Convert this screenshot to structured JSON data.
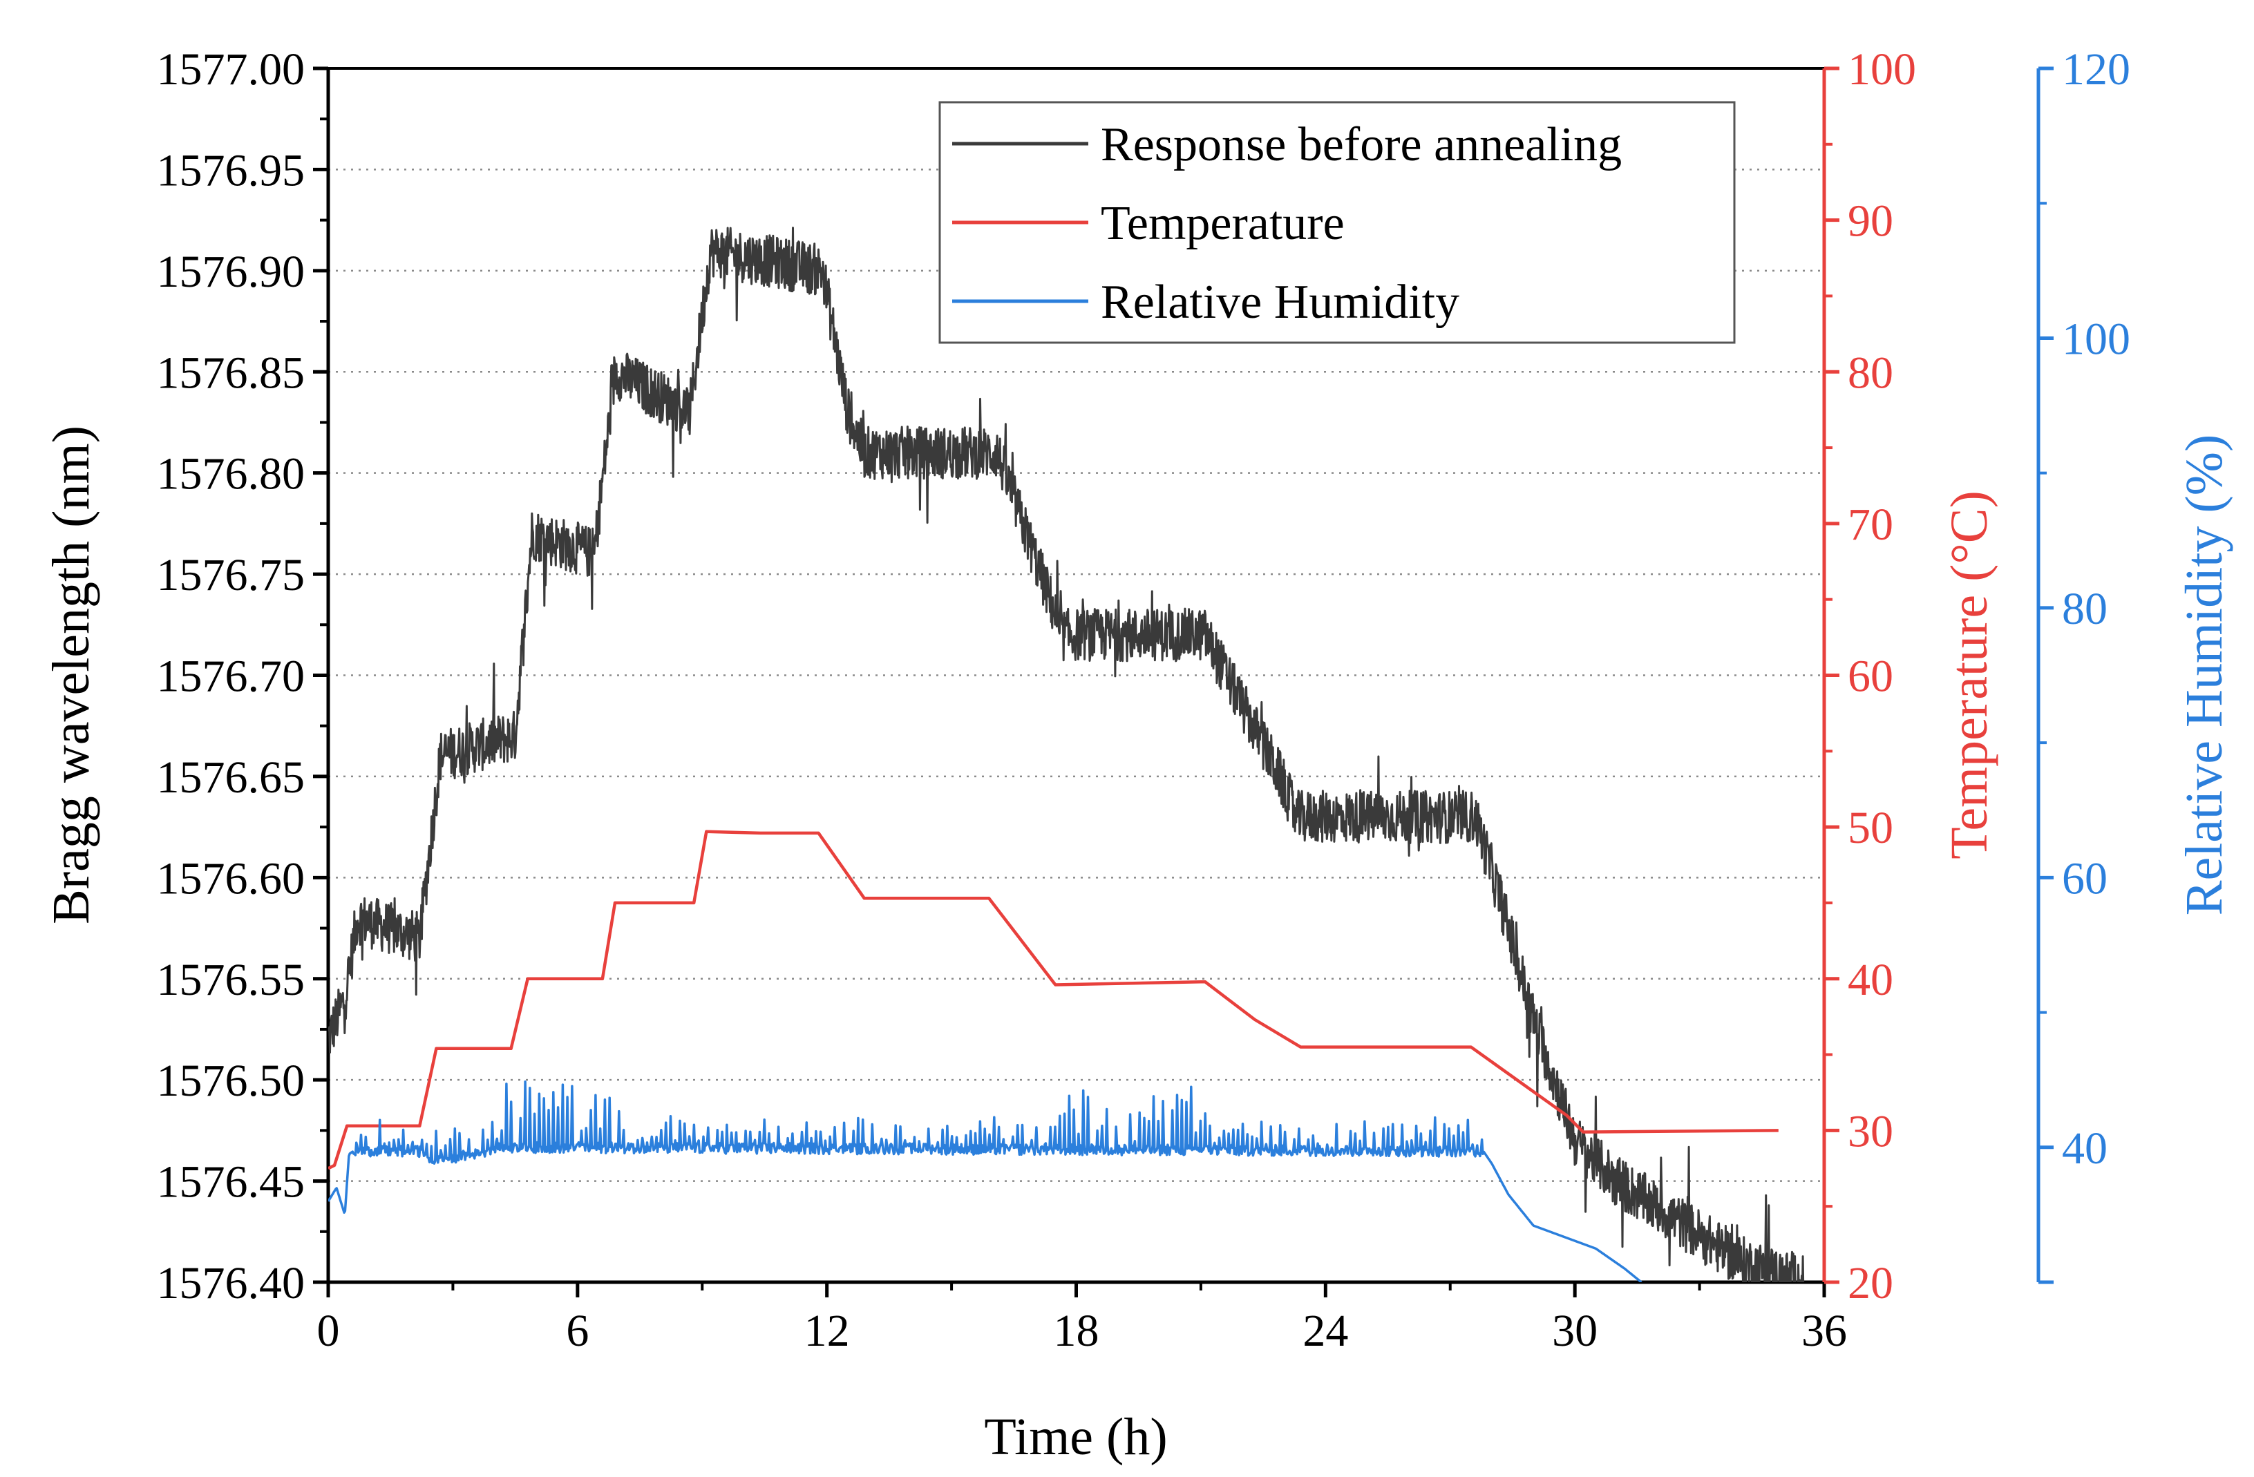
{
  "chart_data": {
    "type": "line",
    "title": "",
    "xlabel": "Time (h)",
    "xlim": [
      0,
      36
    ],
    "xticks": [
      0,
      6,
      12,
      18,
      24,
      30,
      36
    ],
    "grid": "horizontal dotted",
    "legend_position": "top-right",
    "axes": {
      "left": {
        "label": "Bragg wavelength (nm)",
        "range": [
          1576.4,
          1577.0
        ],
        "ticks": [
          "1577.00",
          "1576.95",
          "1576.90",
          "1576.85",
          "1576.80",
          "1576.75",
          "1576.70",
          "1576.65",
          "1576.60",
          "1576.55",
          "1576.50",
          "1576.45",
          "1576.40"
        ],
        "color": "#000000"
      },
      "right1": {
        "label": "Temperature (°C)",
        "range": [
          20,
          100
        ],
        "ticks": [
          "100",
          "90",
          "80",
          "70",
          "60",
          "50",
          "40",
          "30",
          "20"
        ],
        "color": "#e8403c"
      },
      "right2": {
        "label": "Relative Humidity (%)",
        "range": [
          30,
          120
        ],
        "ticks": [
          "120",
          "100",
          "80",
          "60",
          "40"
        ],
        "color": "#2b7fdc"
      }
    },
    "series": [
      {
        "name": "Response before annealing",
        "axis": "left",
        "color": "#3a3a3a",
        "noisy": true,
        "points": [
          [
            0,
            1576.52
          ],
          [
            0.4,
            1576.54
          ],
          [
            0.7,
            1576.58
          ],
          [
            2.2,
            1576.57
          ],
          [
            2.7,
            1576.66
          ],
          [
            4.5,
            1576.67
          ],
          [
            4.9,
            1576.77
          ],
          [
            6.4,
            1576.76
          ],
          [
            6.9,
            1576.85
          ],
          [
            8.7,
            1576.83
          ],
          [
            9.2,
            1576.91
          ],
          [
            11.9,
            1576.9
          ],
          [
            12.5,
            1576.83
          ],
          [
            12.9,
            1576.81
          ],
          [
            16.1,
            1576.81
          ],
          [
            17.5,
            1576.73
          ],
          [
            17.6,
            1576.72
          ],
          [
            21.1,
            1576.72
          ],
          [
            22.9,
            1576.65
          ],
          [
            23.3,
            1576.63
          ],
          [
            27.6,
            1576.63
          ],
          [
            28.2,
            1576.59
          ],
          [
            29.0,
            1576.53
          ],
          [
            30.0,
            1576.47
          ],
          [
            31.0,
            1576.45
          ],
          [
            32.5,
            1576.43
          ],
          [
            34.0,
            1576.41
          ],
          [
            35.5,
            1576.4
          ]
        ]
      },
      {
        "name": "Temperature",
        "axis": "right1",
        "color": "#e8403c",
        "points": [
          [
            0,
            27.5
          ],
          [
            0.15,
            27.7
          ],
          [
            0.45,
            30.3
          ],
          [
            2.2,
            30.3
          ],
          [
            2.6,
            35.4
          ],
          [
            4.4,
            35.4
          ],
          [
            4.8,
            40.0
          ],
          [
            6.6,
            40.0
          ],
          [
            6.9,
            45.0
          ],
          [
            8.8,
            45.0
          ],
          [
            9.1,
            49.7
          ],
          [
            10.4,
            49.6
          ],
          [
            11.8,
            49.6
          ],
          [
            12.9,
            45.3
          ],
          [
            13.5,
            45.3
          ],
          [
            15.9,
            45.3
          ],
          [
            17.5,
            39.6
          ],
          [
            21.1,
            39.8
          ],
          [
            22.3,
            37.3
          ],
          [
            23.4,
            35.5
          ],
          [
            27.5,
            35.5
          ],
          [
            29.8,
            31.0
          ],
          [
            30.2,
            29.9
          ],
          [
            34.9,
            30.0
          ]
        ]
      },
      {
        "name": "Relative Humidity",
        "axis": "right2",
        "color": "#2b7fdc",
        "noisy": true,
        "points": [
          [
            0,
            36
          ],
          [
            0.2,
            37
          ],
          [
            0.4,
            35
          ],
          [
            0.5,
            39.5
          ],
          [
            0.6,
            39.7
          ],
          [
            2.3,
            39.7
          ],
          [
            2.4,
            39.0
          ],
          [
            3.6,
            39.5
          ],
          [
            4.0,
            40.0
          ],
          [
            27.8,
            39.7
          ],
          [
            28.0,
            38.8
          ],
          [
            28.4,
            36.5
          ],
          [
            29.0,
            34.2
          ],
          [
            30.5,
            32.5
          ],
          [
            31.2,
            31.0
          ],
          [
            31.6,
            30.0
          ]
        ]
      }
    ]
  }
}
